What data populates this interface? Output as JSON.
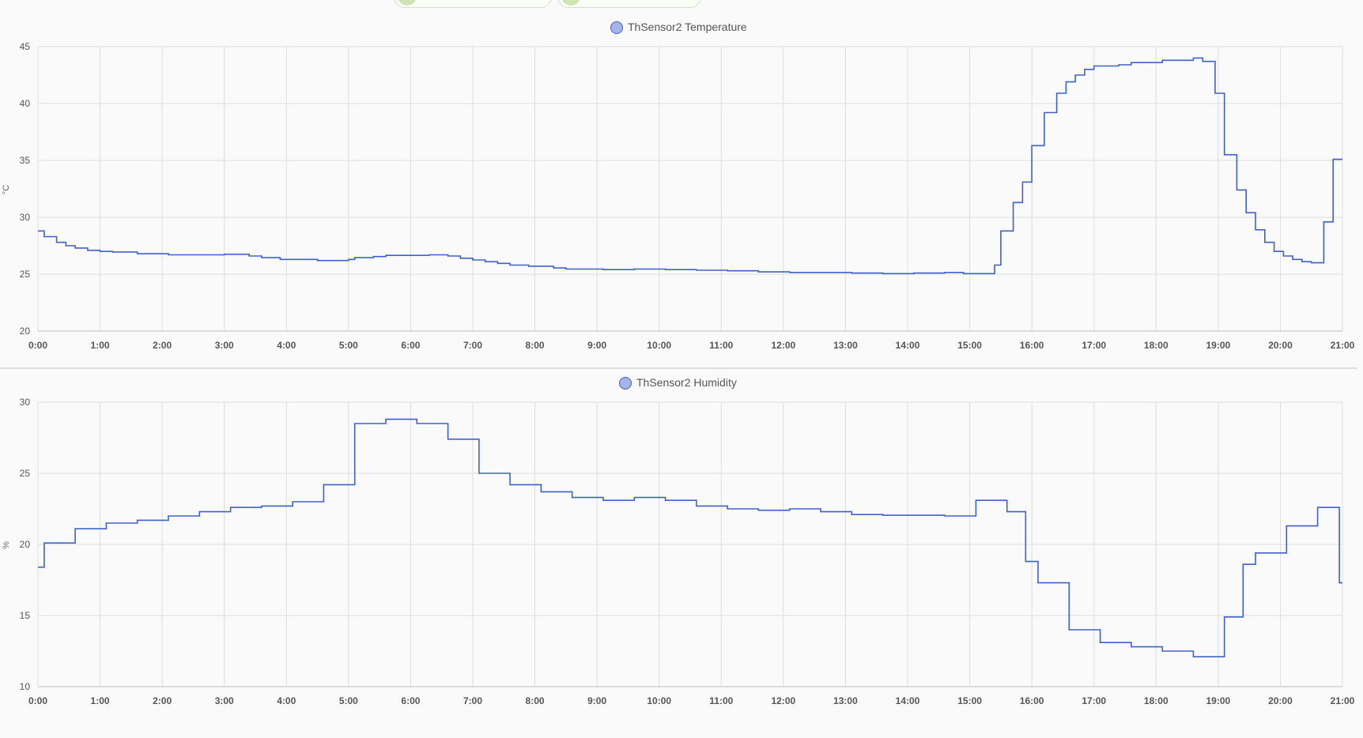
{
  "chart_data": [
    {
      "type": "line",
      "step": true,
      "series": [
        {
          "name": "ThSensor2 Temperature",
          "color": "#3f62c8",
          "legend_fill": "#a4b4e8",
          "points": [
            [
              0.0,
              28.8
            ],
            [
              0.1,
              28.3
            ],
            [
              0.3,
              27.8
            ],
            [
              0.45,
              27.5
            ],
            [
              0.6,
              27.3
            ],
            [
              0.8,
              27.1
            ],
            [
              1.0,
              27.0
            ],
            [
              1.2,
              26.95
            ],
            [
              1.6,
              26.8
            ],
            [
              2.1,
              26.7
            ],
            [
              3.0,
              26.75
            ],
            [
              3.4,
              26.6
            ],
            [
              3.6,
              26.45
            ],
            [
              3.9,
              26.3
            ],
            [
              4.5,
              26.2
            ],
            [
              5.0,
              26.3
            ],
            [
              5.1,
              26.45
            ],
            [
              5.4,
              26.55
            ],
            [
              5.6,
              26.65
            ],
            [
              6.3,
              26.7
            ],
            [
              6.6,
              26.6
            ],
            [
              6.8,
              26.4
            ],
            [
              7.0,
              26.25
            ],
            [
              7.2,
              26.1
            ],
            [
              7.4,
              25.95
            ],
            [
              7.6,
              25.8
            ],
            [
              7.9,
              25.7
            ],
            [
              8.3,
              25.55
            ],
            [
              8.5,
              25.45
            ],
            [
              9.1,
              25.4
            ],
            [
              9.6,
              25.45
            ],
            [
              10.1,
              25.4
            ],
            [
              10.6,
              25.35
            ],
            [
              11.1,
              25.3
            ],
            [
              11.6,
              25.2
            ],
            [
              12.1,
              25.15
            ],
            [
              12.6,
              25.15
            ],
            [
              13.1,
              25.1
            ],
            [
              13.6,
              25.05
            ],
            [
              14.1,
              25.1
            ],
            [
              14.6,
              25.15
            ],
            [
              14.9,
              25.05
            ],
            [
              15.4,
              25.8
            ],
            [
              15.5,
              28.8
            ],
            [
              15.7,
              31.3
            ],
            [
              15.85,
              33.1
            ],
            [
              16.0,
              36.3
            ],
            [
              16.2,
              39.2
            ],
            [
              16.4,
              40.9
            ],
            [
              16.55,
              41.9
            ],
            [
              16.7,
              42.5
            ],
            [
              16.85,
              43.0
            ],
            [
              17.0,
              43.3
            ],
            [
              17.4,
              43.4
            ],
            [
              17.6,
              43.6
            ],
            [
              18.1,
              43.8
            ],
            [
              18.6,
              44.0
            ],
            [
              18.75,
              43.7
            ],
            [
              18.95,
              40.9
            ],
            [
              19.1,
              35.5
            ],
            [
              19.3,
              32.4
            ],
            [
              19.45,
              30.4
            ],
            [
              19.6,
              28.9
            ],
            [
              19.75,
              27.8
            ],
            [
              19.9,
              27.0
            ],
            [
              20.05,
              26.6
            ],
            [
              20.2,
              26.3
            ],
            [
              20.35,
              26.1
            ],
            [
              20.5,
              26.0
            ],
            [
              20.7,
              29.6
            ],
            [
              20.85,
              35.1
            ],
            [
              21.0,
              35.1
            ]
          ]
        }
      ],
      "ylabel": "°C",
      "xlim": [
        "0:00",
        "21:00"
      ],
      "ylim": [
        20,
        45
      ],
      "yticks": [
        "20",
        "25",
        "30",
        "35",
        "40",
        "45"
      ],
      "xticks": [
        "0:00",
        "1:00",
        "2:00",
        "3:00",
        "4:00",
        "5:00",
        "6:00",
        "7:00",
        "8:00",
        "9:00",
        "10:00",
        "11:00",
        "12:00",
        "13:00",
        "14:00",
        "15:00",
        "16:00",
        "17:00",
        "18:00",
        "19:00",
        "20:00",
        "21:00"
      ],
      "grid": true,
      "legend": "top-center"
    },
    {
      "type": "line",
      "step": true,
      "series": [
        {
          "name": "ThSensor2 Humidity",
          "color": "#3f62c8",
          "legend_fill": "#a4b4e8",
          "points": [
            [
              0.0,
              18.4
            ],
            [
              0.1,
              20.1
            ],
            [
              0.6,
              21.1
            ],
            [
              1.1,
              21.5
            ],
            [
              1.6,
              21.7
            ],
            [
              2.1,
              22.0
            ],
            [
              2.6,
              22.3
            ],
            [
              3.1,
              22.6
            ],
            [
              3.6,
              22.7
            ],
            [
              4.1,
              23.0
            ],
            [
              4.6,
              24.2
            ],
            [
              5.1,
              28.5
            ],
            [
              5.6,
              28.8
            ],
            [
              6.1,
              28.5
            ],
            [
              6.6,
              27.4
            ],
            [
              7.1,
              25.0
            ],
            [
              7.6,
              24.2
            ],
            [
              8.1,
              23.7
            ],
            [
              8.6,
              23.3
            ],
            [
              9.1,
              23.1
            ],
            [
              9.6,
              23.3
            ],
            [
              10.1,
              23.1
            ],
            [
              10.6,
              22.7
            ],
            [
              11.1,
              22.5
            ],
            [
              11.6,
              22.4
            ],
            [
              12.1,
              22.5
            ],
            [
              12.6,
              22.3
            ],
            [
              13.1,
              22.1
            ],
            [
              13.6,
              22.05
            ],
            [
              14.1,
              22.05
            ],
            [
              14.6,
              22.0
            ],
            [
              15.1,
              23.1
            ],
            [
              15.6,
              22.3
            ],
            [
              15.9,
              18.8
            ],
            [
              16.1,
              17.3
            ],
            [
              16.6,
              14.0
            ],
            [
              17.1,
              13.1
            ],
            [
              17.6,
              12.8
            ],
            [
              18.1,
              12.5
            ],
            [
              18.6,
              12.1
            ],
            [
              19.1,
              14.9
            ],
            [
              19.4,
              18.6
            ],
            [
              19.6,
              19.4
            ],
            [
              20.1,
              21.3
            ],
            [
              20.6,
              22.6
            ],
            [
              20.95,
              17.3
            ],
            [
              21.0,
              17.3
            ]
          ]
        }
      ],
      "ylabel": "%",
      "xlim": [
        "0:00",
        "21:00"
      ],
      "ylim": [
        10,
        30
      ],
      "yticks": [
        "10",
        "15",
        "20",
        "25",
        "30"
      ],
      "xticks": [
        "0:00",
        "1:00",
        "2:00",
        "3:00",
        "4:00",
        "5:00",
        "6:00",
        "7:00",
        "8:00",
        "9:00",
        "10:00",
        "11:00",
        "12:00",
        "13:00",
        "14:00",
        "15:00",
        "16:00",
        "17:00",
        "18:00",
        "19:00",
        "20:00",
        "21:00"
      ],
      "grid": true,
      "legend": "top-center"
    }
  ]
}
